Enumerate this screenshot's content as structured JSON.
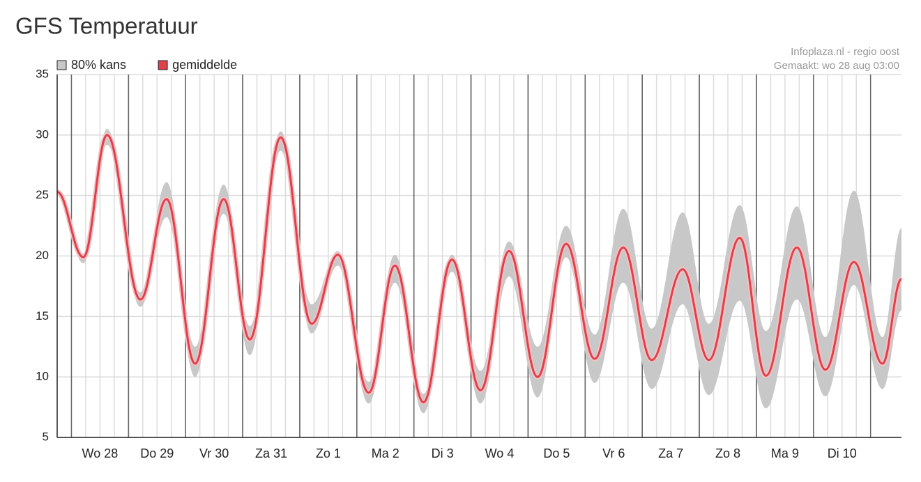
{
  "page_title": "GFS Temperatuur",
  "chart_data": {
    "type": "band-line",
    "source": "Infoplaza.nl - regio oost",
    "made": "Gemaakt: wo 28 aug 03:00",
    "x": [
      -6,
      5,
      15,
      29,
      40,
      52,
      64,
      75,
      88,
      101,
      112,
      125,
      136,
      148,
      160,
      172,
      184,
      196,
      208,
      220,
      232,
      244,
      257,
      268,
      281,
      292,
      305,
      317,
      329,
      341,
      349
    ],
    "xlim": [
      -6,
      349
    ],
    "xticks": [
      {
        "value": 12,
        "label": "Wo 28"
      },
      {
        "value": 36,
        "label": "Do 29"
      },
      {
        "value": 60,
        "label": "Vr 30"
      },
      {
        "value": 84,
        "label": "Za 31"
      },
      {
        "value": 108,
        "label": "Zo 1"
      },
      {
        "value": 132,
        "label": "Ma 2"
      },
      {
        "value": 156,
        "label": "Di 3"
      },
      {
        "value": 180,
        "label": "Wo 4"
      },
      {
        "value": 204,
        "label": "Do 5"
      },
      {
        "value": 228,
        "label": "Vr 6"
      },
      {
        "value": 252,
        "label": "Za 7"
      },
      {
        "value": 276,
        "label": "Zo 8"
      },
      {
        "value": 300,
        "label": "Ma 9"
      },
      {
        "value": 324,
        "label": "Di 10"
      }
    ],
    "ylim": [
      5,
      35
    ],
    "yticks": [
      5,
      10,
      15,
      20,
      25,
      30,
      35
    ],
    "grid": true,
    "series": [
      {
        "name": "80% kans",
        "color": "#c8c8c8",
        "low": [
          25.3,
          19.4,
          29.2,
          15.8,
          23.2,
          10.0,
          23.5,
          11.8,
          28.7,
          13.6,
          19.2,
          7.8,
          17.8,
          7.0,
          18.7,
          7.8,
          18.3,
          8.3,
          19.9,
          9.5,
          17.8,
          9.0,
          16.0,
          8.5,
          16.3,
          7.4,
          16.4,
          8.4,
          17.6,
          9.0,
          15.5
        ],
        "high": [
          25.5,
          20.2,
          30.5,
          17.0,
          26.1,
          12.5,
          25.9,
          14.2,
          30.3,
          16.0,
          20.4,
          9.6,
          20.1,
          8.6,
          20.1,
          10.5,
          21.2,
          12.5,
          22.5,
          13.5,
          23.9,
          14.0,
          23.6,
          14.4,
          24.2,
          13.8,
          24.1,
          13.3,
          25.4,
          13.3,
          22.3
        ]
      },
      {
        "name": "gemiddelde",
        "color": "#e0404a",
        "values": [
          25.3,
          19.9,
          30.0,
          16.4,
          24.7,
          11.1,
          24.7,
          13.1,
          29.8,
          14.4,
          20.1,
          8.7,
          19.2,
          7.9,
          19.7,
          8.9,
          20.4,
          10.0,
          21.0,
          11.5,
          20.7,
          11.4,
          18.9,
          11.4,
          21.5,
          10.1,
          20.7,
          10.6,
          19.5,
          11.1,
          18.1
        ]
      }
    ]
  }
}
